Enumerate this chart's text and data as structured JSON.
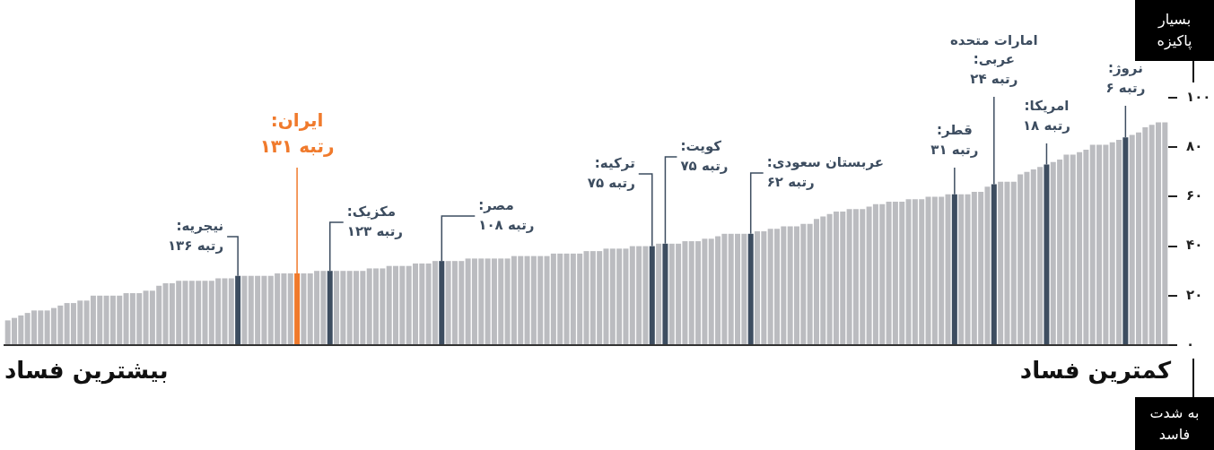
{
  "chart_data": {
    "type": "bar",
    "categories": [
      null,
      null,
      null,
      null,
      null,
      null,
      null,
      null,
      null,
      null,
      null,
      null,
      null,
      null,
      null,
      null,
      null,
      null,
      null,
      null,
      null,
      null,
      null,
      null,
      null,
      null,
      null,
      null,
      null,
      null,
      null,
      null,
      null,
      null,
      null,
      null,
      null,
      null,
      null,
      null,
      null,
      null,
      null,
      null,
      null,
      null,
      null,
      null,
      null,
      null,
      null,
      null,
      null,
      null,
      null,
      null,
      null,
      null,
      null,
      null,
      null,
      null,
      null,
      null,
      null,
      null,
      null,
      null,
      null,
      null,
      null,
      null,
      null,
      null,
      null,
      null,
      null,
      null,
      null,
      null,
      null,
      null,
      null,
      null,
      null,
      null,
      null,
      null,
      null,
      null,
      null,
      null,
      null,
      null,
      null,
      null,
      null,
      null,
      null,
      null,
      null,
      null,
      null,
      null,
      null,
      null,
      null,
      null,
      null,
      null,
      null,
      null,
      null,
      null,
      null,
      null,
      null,
      null,
      null,
      null,
      null,
      null,
      null,
      null,
      null,
      null,
      null,
      null,
      null,
      null,
      null,
      null,
      null,
      null,
      null,
      null,
      null,
      null,
      null,
      null,
      null,
      null,
      null,
      null,
      null,
      null,
      null,
      null,
      null,
      null,
      null,
      null,
      null,
      null,
      null,
      null,
      null,
      null,
      null,
      null,
      null,
      null,
      null,
      null,
      null,
      null,
      null,
      null,
      null,
      null,
      null,
      null,
      null,
      null,
      null,
      null,
      null
    ],
    "values": [
      10,
      11,
      12,
      13,
      14,
      14,
      14,
      15,
      16,
      17,
      17,
      18,
      18,
      20,
      20,
      20,
      20,
      20,
      21,
      21,
      21,
      22,
      22,
      24,
      25,
      25,
      26,
      26,
      26,
      26,
      26,
      26,
      27,
      27,
      27,
      28,
      28,
      28,
      28,
      28,
      28,
      29,
      29,
      29,
      29,
      29,
      29,
      30,
      30,
      30,
      30,
      30,
      30,
      30,
      30,
      31,
      31,
      31,
      32,
      32,
      32,
      32,
      33,
      33,
      33,
      34,
      34,
      34,
      34,
      34,
      35,
      35,
      35,
      35,
      35,
      35,
      35,
      36,
      36,
      36,
      36,
      36,
      36,
      37,
      37,
      37,
      37,
      37,
      38,
      38,
      38,
      39,
      39,
      39,
      39,
      40,
      40,
      40,
      40,
      41,
      41,
      41,
      41,
      42,
      42,
      42,
      43,
      43,
      44,
      45,
      45,
      45,
      45,
      45,
      46,
      46,
      47,
      47,
      48,
      48,
      48,
      49,
      49,
      51,
      52,
      53,
      54,
      54,
      55,
      55,
      55,
      56,
      57,
      57,
      58,
      58,
      58,
      59,
      59,
      59,
      60,
      60,
      60,
      61,
      61,
      61,
      61,
      62,
      62,
      64,
      65,
      66,
      66,
      66,
      69,
      70,
      71,
      72,
      73,
      74,
      75,
      77,
      77,
      78,
      79,
      81,
      81,
      81,
      82,
      83,
      84,
      85,
      86,
      88,
      89,
      90,
      90
    ],
    "colors": [
      "#bbbcc0",
      "#bbbcc0",
      "#bbbcc0",
      "#bbbcc0",
      "#bbbcc0",
      "#bbbcc0",
      "#bbbcc0",
      "#bbbcc0",
      "#bbbcc0",
      "#bbbcc0",
      "#bbbcc0",
      "#bbbcc0",
      "#bbbcc0",
      "#bbbcc0",
      "#bbbcc0",
      "#bbbcc0",
      "#bbbcc0",
      "#bbbcc0",
      "#bbbcc0",
      "#bbbcc0",
      "#bbbcc0",
      "#bbbcc0",
      "#bbbcc0",
      "#bbbcc0",
      "#bbbcc0",
      "#bbbcc0",
      "#bbbcc0",
      "#bbbcc0",
      "#bbbcc0",
      "#bbbcc0",
      "#bbbcc0",
      "#bbbcc0",
      "#bbbcc0",
      "#bbbcc0",
      "#bbbcc0",
      "#3d4d60",
      "#bbbcc0",
      "#bbbcc0",
      "#bbbcc0",
      "#bbbcc0",
      "#bbbcc0",
      "#bbbcc0",
      "#bbbcc0",
      "#bbbcc0",
      "#f07a2c",
      "#bbbcc0",
      "#bbbcc0",
      "#bbbcc0",
      "#bbbcc0",
      "#3d4d60",
      "#bbbcc0",
      "#bbbcc0",
      "#bbbcc0",
      "#bbbcc0",
      "#bbbcc0",
      "#bbbcc0",
      "#bbbcc0",
      "#bbbcc0",
      "#bbbcc0",
      "#bbbcc0",
      "#bbbcc0",
      "#bbbcc0",
      "#bbbcc0",
      "#bbbcc0",
      "#bbbcc0",
      "#bbbcc0",
      "#3d4d60",
      "#bbbcc0",
      "#bbbcc0",
      "#bbbcc0",
      "#bbbcc0",
      "#bbbcc0",
      "#bbbcc0",
      "#bbbcc0",
      "#bbbcc0",
      "#bbbcc0",
      "#bbbcc0",
      "#bbbcc0",
      "#bbbcc0",
      "#bbbcc0",
      "#bbbcc0",
      "#bbbcc0",
      "#bbbcc0",
      "#bbbcc0",
      "#bbbcc0",
      "#bbbcc0",
      "#bbbcc0",
      "#bbbcc0",
      "#bbbcc0",
      "#bbbcc0",
      "#bbbcc0",
      "#bbbcc0",
      "#bbbcc0",
      "#bbbcc0",
      "#bbbcc0",
      "#bbbcc0",
      "#bbbcc0",
      "#bbbcc0",
      "#3d4d60",
      "#bbbcc0",
      "#3d4d60",
      "#bbbcc0",
      "#bbbcc0",
      "#bbbcc0",
      "#bbbcc0",
      "#bbbcc0",
      "#bbbcc0",
      "#bbbcc0",
      "#bbbcc0",
      "#bbbcc0",
      "#bbbcc0",
      "#bbbcc0",
      "#bbbcc0",
      "#3d4d60",
      "#bbbcc0",
      "#bbbcc0",
      "#bbbcc0",
      "#bbbcc0",
      "#bbbcc0",
      "#bbbcc0",
      "#bbbcc0",
      "#bbbcc0",
      "#bbbcc0",
      "#bbbcc0",
      "#bbbcc0",
      "#bbbcc0",
      "#bbbcc0",
      "#bbbcc0",
      "#bbbcc0",
      "#bbbcc0",
      "#bbbcc0",
      "#bbbcc0",
      "#bbbcc0",
      "#bbbcc0",
      "#bbbcc0",
      "#bbbcc0",
      "#bbbcc0",
      "#bbbcc0",
      "#bbbcc0",
      "#bbbcc0",
      "#bbbcc0",
      "#bbbcc0",
      "#bbbcc0",
      "#bbbcc0",
      "#3d4d60",
      "#bbbcc0",
      "#bbbcc0",
      "#bbbcc0",
      "#bbbcc0",
      "#bbbcc0",
      "#3d4d60",
      "#bbbcc0",
      "#bbbcc0",
      "#bbbcc0",
      "#bbbcc0",
      "#bbbcc0",
      "#bbbcc0",
      "#bbbcc0",
      "#3d4d60",
      "#bbbcc0",
      "#bbbcc0",
      "#bbbcc0",
      "#bbbcc0",
      "#bbbcc0",
      "#bbbcc0",
      "#bbbcc0",
      "#bbbcc0",
      "#bbbcc0",
      "#bbbcc0",
      "#bbbcc0",
      "#3d4d60",
      "#bbbcc0",
      "#bbbcc0",
      "#bbbcc0",
      "#bbbcc0",
      "#bbbcc0",
      "#bbbcc0"
    ],
    "value_labels": [
      null,
      null,
      null,
      null,
      null,
      null,
      null,
      null,
      null,
      null,
      null,
      null,
      null,
      null,
      null,
      null,
      null,
      null,
      null,
      null,
      null,
      null,
      null,
      null,
      null,
      null,
      null,
      null,
      null,
      null,
      null,
      null,
      null,
      null,
      null,
      "نیجریه:\nرتبه ۱۳۶",
      null,
      null,
      null,
      null,
      null,
      null,
      null,
      null,
      "ایران:\nرتبه ۱۳۱",
      null,
      null,
      null,
      null,
      "مکزیک:\nرتبه ۱۲۳",
      null,
      null,
      null,
      null,
      null,
      null,
      null,
      null,
      null,
      null,
      null,
      null,
      null,
      null,
      null,
      null,
      "مصر:\nرتبه ۱۰۸",
      null,
      null,
      null,
      null,
      null,
      null,
      null,
      null,
      null,
      null,
      null,
      null,
      null,
      null,
      null,
      null,
      null,
      null,
      null,
      null,
      null,
      null,
      null,
      null,
      null,
      null,
      null,
      null,
      null,
      null,
      null,
      "ترکیه:\nرتبه ۷۵",
      null,
      "کویت:\nرتبه ۷۵",
      null,
      null,
      null,
      null,
      null,
      null,
      null,
      null,
      null,
      null,
      null,
      null,
      "عربستان سعودی:\nرتبه ۶۲",
      null,
      null,
      null,
      null,
      null,
      null,
      null,
      null,
      null,
      null,
      null,
      null,
      null,
      null,
      null,
      null,
      null,
      null,
      null,
      null,
      null,
      null,
      null,
      null,
      null,
      null,
      null,
      null,
      null,
      null,
      "قطر:\nرتبه ۳۱",
      null,
      null,
      null,
      null,
      null,
      "امارات متحده\nعربی:\nرتبه ۲۴",
      null,
      null,
      null,
      null,
      null,
      null,
      null,
      "امریکا:\nرتبه ۱۸",
      null,
      null,
      null,
      null,
      null,
      null,
      null,
      null,
      null,
      null,
      null,
      "نروژ:\nرتبه ۶",
      null,
      null,
      null,
      null,
      null,
      null
    ],
    "ylim": [
      0,
      100
    ],
    "yticks": [
      {
        "value": 0,
        "label": "۰"
      },
      {
        "value": 20,
        "label": "۲۰"
      },
      {
        "value": 40,
        "label": "۴۰"
      },
      {
        "value": 60,
        "label": "۶۰"
      },
      {
        "value": 80,
        "label": "۸۰"
      },
      {
        "value": 100,
        "label": "۱۰۰"
      }
    ],
    "tick_labels": "y",
    "annotations": [
      "بیشترین فساد",
      "کمترین فساد",
      "بسیار پاکیزه",
      "به شدت فاسد"
    ]
  }
}
